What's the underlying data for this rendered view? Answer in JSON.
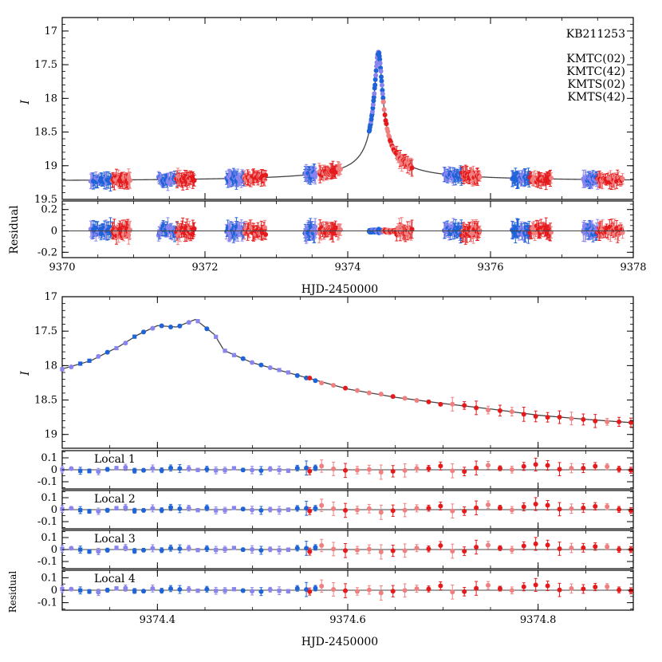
{
  "chart_data": [
    {
      "type": "scatter",
      "title": "KB211253",
      "xlabel": "HJD-2450000",
      "ylabel": "I",
      "xlim": [
        9370,
        9378
      ],
      "ylim": [
        19.5,
        16.8
      ],
      "y_inverted": true,
      "xticks": [
        "9370",
        "9372",
        "9374",
        "9376",
        "9378"
      ],
      "yticks": [
        "17",
        "17.5",
        "18",
        "18.5",
        "19",
        "19.5"
      ],
      "legend": {
        "placement": "top-right",
        "entries": [
          {
            "name": "KMTC(02)",
            "color": "#e41a1c"
          },
          {
            "name": "KMTC(42)",
            "color": "#f08080"
          },
          {
            "name": "KMTS(02)",
            "color": "#1e63d8"
          },
          {
            "name": "KMTS(42)",
            "color": "#8a84ee"
          }
        ]
      },
      "model_curve": {
        "baseline": 19.22,
        "peak": 17.3,
        "t0": 9374.43
      },
      "residual_panel": {
        "ylabel": "Residual",
        "ylim": [
          -0.25,
          0.28
        ],
        "yticks": [
          "-0.2",
          "0",
          "0.2"
        ]
      }
    },
    {
      "type": "scatter",
      "xlabel": "HJD-2450000",
      "ylabel": "I",
      "xlim": [
        9374.3,
        9374.9
      ],
      "ylim": [
        19.2,
        17.0
      ],
      "y_inverted": true,
      "xticks": [
        "9374.4",
        "9374.6",
        "9374.8"
      ],
      "yticks": [
        "17",
        "17.5",
        "18",
        "18.5",
        "19"
      ],
      "model_points": [
        [
          9374.3,
          18.05
        ],
        [
          9374.33,
          17.93
        ],
        [
          9374.36,
          17.72
        ],
        [
          9374.38,
          17.55
        ],
        [
          9374.4,
          17.42
        ],
        [
          9374.42,
          17.44
        ],
        [
          9374.44,
          17.33
        ],
        [
          9374.46,
          17.55
        ],
        [
          9374.47,
          17.78
        ],
        [
          9374.5,
          17.96
        ],
        [
          9374.55,
          18.15
        ],
        [
          9374.6,
          18.34
        ],
        [
          9374.65,
          18.46
        ],
        [
          9374.7,
          18.55
        ],
        [
          9374.75,
          18.63
        ],
        [
          9374.8,
          18.72
        ],
        [
          9374.85,
          18.78
        ],
        [
          9374.9,
          18.83
        ]
      ],
      "residual_panels": [
        {
          "label": "Local 1",
          "ylabel": "",
          "yticks": [
            "0.1",
            "0",
            "-0.1"
          ]
        },
        {
          "label": "Local 2",
          "ylabel": "",
          "yticks": [
            "0.1",
            "0",
            "-0.1"
          ]
        },
        {
          "label": "Local 3",
          "ylabel": "",
          "yticks": [
            "0.1",
            "0",
            "-0.1"
          ]
        },
        {
          "label": "Local 4",
          "ylabel": "Residual",
          "yticks": [
            "0.1",
            "0",
            "-0.1"
          ]
        }
      ]
    }
  ]
}
